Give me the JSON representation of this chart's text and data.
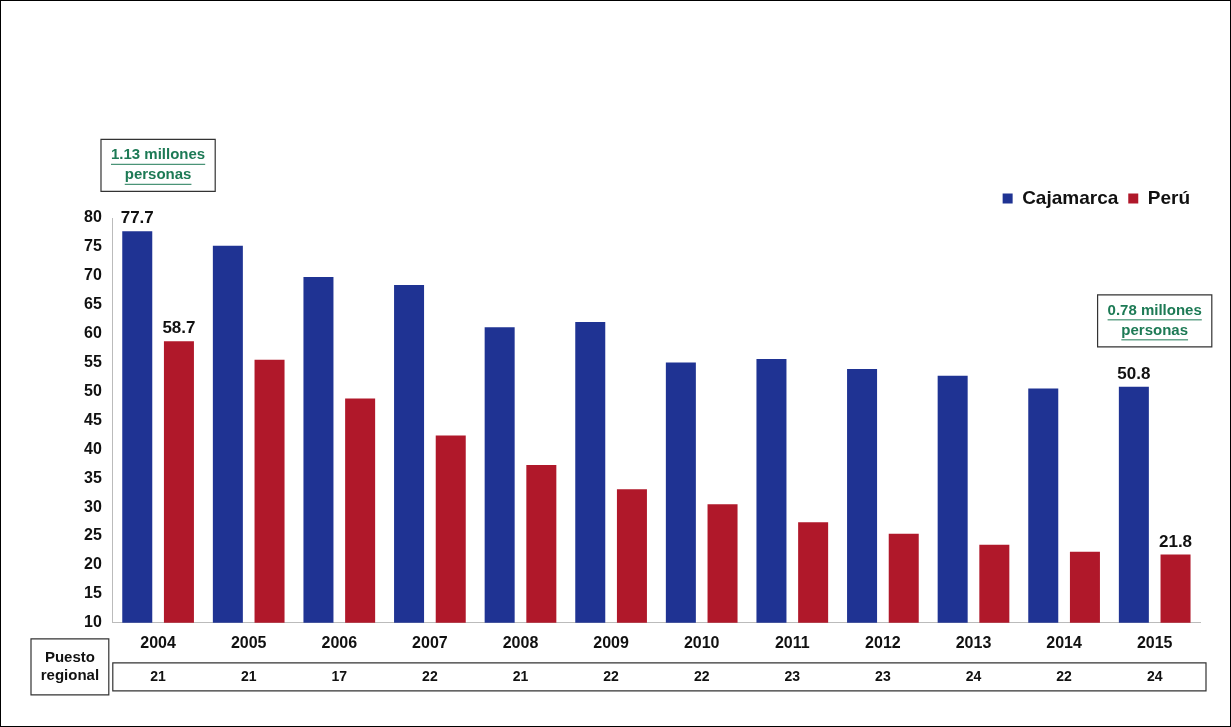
{
  "chart_data": {
    "type": "bar",
    "categories": [
      "2004",
      "2005",
      "2006",
      "2007",
      "2008",
      "2009",
      "2010",
      "2011",
      "2012",
      "2013",
      "2014",
      "2015"
    ],
    "series": [
      {
        "name": "Cajamarca",
        "color": "#1f3393",
        "values": [
          77.7,
          75.2,
          69.8,
          68.4,
          61.1,
          62.0,
          55.0,
          55.6,
          53.9,
          52.7,
          50.5,
          50.8
        ],
        "value_labels": [
          "77.7",
          null,
          null,
          null,
          null,
          null,
          null,
          null,
          null,
          null,
          null,
          "50.8"
        ]
      },
      {
        "name": "Perú",
        "color": "#b0182a",
        "values": [
          58.7,
          55.5,
          48.8,
          42.4,
          37.3,
          33.1,
          30.5,
          27.4,
          25.4,
          23.5,
          22.3,
          21.8
        ],
        "value_labels": [
          "58.7",
          null,
          null,
          null,
          null,
          null,
          null,
          null,
          null,
          null,
          null,
          "21.8"
        ]
      }
    ],
    "ylim": [
      10,
      80
    ],
    "yticks": [
      10,
      15,
      20,
      25,
      30,
      35,
      40,
      45,
      50,
      55,
      60,
      65,
      70,
      75,
      80
    ],
    "grid": false,
    "legend": "top right",
    "annotations": [
      "1.13 millones personas",
      "0.78 millones personas",
      "Puesto regional",
      "21",
      "21",
      "17",
      "22",
      "21",
      "22",
      "22",
      "23",
      "23",
      "24",
      "22",
      "24"
    ]
  }
}
